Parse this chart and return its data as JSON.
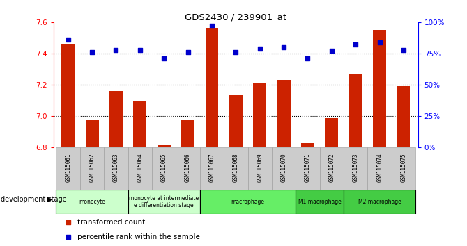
{
  "title": "GDS2430 / 239901_at",
  "samples": [
    "GSM115061",
    "GSM115062",
    "GSM115063",
    "GSM115064",
    "GSM115065",
    "GSM115066",
    "GSM115067",
    "GSM115068",
    "GSM115069",
    "GSM115070",
    "GSM115071",
    "GSM115072",
    "GSM115073",
    "GSM115074",
    "GSM115075"
  ],
  "bar_values": [
    7.46,
    6.98,
    7.16,
    7.1,
    6.82,
    6.98,
    7.56,
    7.14,
    7.21,
    7.23,
    6.83,
    6.99,
    7.27,
    7.55,
    7.19
  ],
  "percentile_values": [
    86,
    76,
    78,
    78,
    71,
    76,
    97,
    76,
    79,
    80,
    71,
    77,
    82,
    84,
    78
  ],
  "bar_color": "#cc2200",
  "marker_color": "#0000cc",
  "bar_bottom": 6.8,
  "ylim_left": [
    6.8,
    7.6
  ],
  "ylim_right": [
    0,
    100
  ],
  "yticks_left": [
    6.8,
    7.0,
    7.2,
    7.4,
    7.6
  ],
  "yticks_right": [
    0,
    25,
    50,
    75,
    100
  ],
  "ytick_labels_right": [
    "0%",
    "25%",
    "50%",
    "75%",
    "100%"
  ],
  "grid_values": [
    7.0,
    7.2,
    7.4
  ],
  "stages": [
    {
      "label": "monocyte",
      "start": 0,
      "end": 3,
      "color": "#ccffcc"
    },
    {
      "label": "monocyte at intermediate\ne differentiation stage",
      "start": 3,
      "end": 6,
      "color": "#ccffcc"
    },
    {
      "label": "macrophage",
      "start": 6,
      "end": 10,
      "color": "#66ee66"
    },
    {
      "label": "M1 macrophage",
      "start": 10,
      "end": 12,
      "color": "#44cc44"
    },
    {
      "label": "M2 macrophage",
      "start": 12,
      "end": 15,
      "color": "#44cc44"
    }
  ],
  "legend_bar_label": "transformed count",
  "legend_marker_label": "percentile rank within the sample",
  "xlabel_stage": "development stage"
}
